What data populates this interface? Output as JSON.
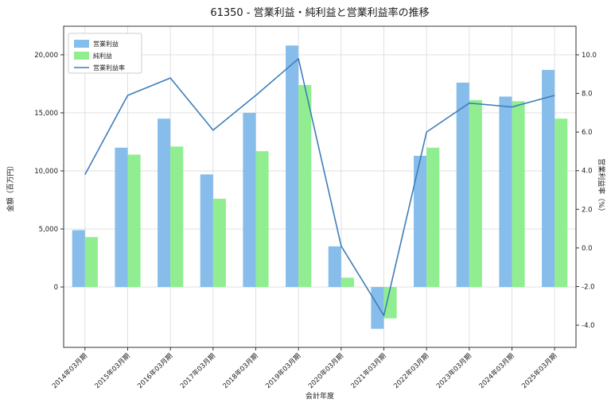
{
  "title": "61350 - 営業利益・純利益と営業利益率の推移",
  "chart_data": {
    "type": "bar+line",
    "title": "61350 - 営業利益・純利益と営業利益率の推移",
    "xlabel": "会計年度",
    "ylabel_left": "金額（百万円）",
    "ylabel_right": "営業利益率（%）",
    "categories": [
      "2014年03月期",
      "2015年03月期",
      "2016年03月期",
      "2017年03月期",
      "2018年03月期",
      "2019年03月期",
      "2020年03月期",
      "2021年03月期",
      "2022年03月期",
      "2023年03月期",
      "2024年03月期",
      "2025年03月期"
    ],
    "series": [
      {
        "key": "operating-profit",
        "name": "営業利益",
        "type": "bar",
        "axis": "left",
        "color": "#87BDEB",
        "values": [
          4900,
          12000,
          14500,
          9700,
          15000,
          20800,
          3500,
          -3600,
          11300,
          17600,
          16400,
          18700
        ]
      },
      {
        "key": "net-profit",
        "name": "純利益",
        "type": "bar",
        "axis": "left",
        "color": "#90EE90",
        "values": [
          4300,
          11400,
          12100,
          7600,
          11700,
          17400,
          800,
          -2700,
          12000,
          16100,
          16000,
          14500
        ]
      },
      {
        "key": "operating-margin",
        "name": "営業利益率",
        "type": "line",
        "axis": "right",
        "color": "#3E7EB9",
        "values": [
          3.8,
          7.9,
          8.8,
          6.1,
          7.9,
          9.8,
          0.1,
          -3.5,
          6.0,
          7.5,
          7.3,
          7.9
        ]
      }
    ],
    "yticks_left": [
      0,
      5000,
      10000,
      15000,
      20000
    ],
    "yticks_right": [
      -4.0,
      -2.0,
      0.0,
      2.0,
      4.0,
      6.0,
      8.0,
      10.0
    ],
    "ylim_left": [
      -5200,
      22460
    ],
    "ylim_right": [
      -5.15,
      11.48
    ],
    "grid": true,
    "legend_position": "upper-left"
  }
}
